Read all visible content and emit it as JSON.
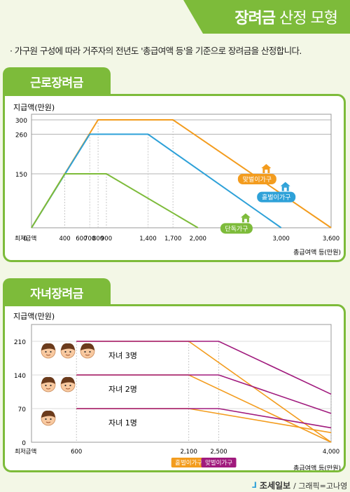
{
  "header": {
    "title_bold": "장려금",
    "title_rest": "산정 모형",
    "color": "#7dbb3a"
  },
  "intro": "· 가구원 구성에 따라 거주자의 전년도 '총급여액 등'을 기준으로 장려금을 산정합니다.",
  "footer": {
    "logo": "조세일보",
    "credit": "/ 그래픽=고나영"
  },
  "chart_data": [
    {
      "type": "line",
      "tab_title": "근로장려금",
      "ylabel": "지급액(만원)",
      "xlabel": "총급여액 등(만원)",
      "x_min_label": "최저금액",
      "x_ticks": [
        400,
        600,
        700,
        800,
        900,
        1400,
        1700,
        2000,
        3000,
        3600
      ],
      "x_tick_labels": [
        "400",
        "600",
        "700",
        "800",
        "900",
        "1,400",
        "1,700",
        "2,000",
        "3,000",
        "3,600"
      ],
      "y_ticks": [
        0,
        150,
        260,
        300
      ],
      "y_tick_labels": [
        "0",
        "150",
        "260",
        "300"
      ],
      "xlim": [
        0,
        3600
      ],
      "ylim": [
        0,
        300
      ],
      "series": [
        {
          "name": "맞벌이가구",
          "color": "#f39c1e",
          "x": [
            0,
            800,
            1700,
            3600
          ],
          "y": [
            0,
            300,
            300,
            0
          ]
        },
        {
          "name": "홑벌이가구",
          "color": "#2ea1d8",
          "x": [
            0,
            700,
            1400,
            3000
          ],
          "y": [
            0,
            260,
            260,
            0
          ]
        },
        {
          "name": "단독가구",
          "color": "#7dbb3a",
          "x": [
            0,
            400,
            900,
            2000
          ],
          "y": [
            0,
            150,
            150,
            0
          ]
        }
      ]
    },
    {
      "type": "line",
      "tab_title": "자녀장려금",
      "ylabel": "지급액(만원)",
      "xlabel": "총급여액 등(만원)",
      "x_min_label": "최저금액",
      "x_ticks": [
        600,
        2100,
        2500,
        4000
      ],
      "x_tick_labels": [
        "600",
        "2,100",
        "2,500",
        "4,000"
      ],
      "y_ticks": [
        0,
        70,
        140,
        210
      ],
      "y_tick_labels": [
        "0",
        "70",
        "140",
        "210"
      ],
      "xlim": [
        0,
        4000
      ],
      "ylim": [
        0,
        210
      ],
      "groups": [
        "자녀 3명",
        "자녀 2명",
        "자녀 1명"
      ],
      "legend": [
        {
          "name": "홑벌이가구",
          "color": "#f39c1e"
        },
        {
          "name": "맞벌이가구",
          "color": "#a01a7d"
        }
      ],
      "series": [
        {
          "name": "홑벌이가구",
          "group": "자녀 3명",
          "color": "#f39c1e",
          "x": [
            600,
            2100,
            4000
          ],
          "y": [
            210,
            210,
            0
          ]
        },
        {
          "name": "맞벌이가구",
          "group": "자녀 3명",
          "color": "#a01a7d",
          "x": [
            600,
            2500,
            4000
          ],
          "y": [
            210,
            210,
            100
          ]
        },
        {
          "name": "홑벌이가구",
          "group": "자녀 2명",
          "color": "#f39c1e",
          "x": [
            600,
            2100,
            4000
          ],
          "y": [
            140,
            140,
            0
          ]
        },
        {
          "name": "맞벌이가구",
          "group": "자녀 2명",
          "color": "#a01a7d",
          "x": [
            600,
            2500,
            4000
          ],
          "y": [
            140,
            140,
            60
          ]
        },
        {
          "name": "홑벌이가구",
          "group": "자녀 1명",
          "color": "#f39c1e",
          "x": [
            600,
            2100,
            4000
          ],
          "y": [
            70,
            70,
            20
          ]
        },
        {
          "name": "맞벌이가구",
          "group": "자녀 1명",
          "color": "#a01a7d",
          "x": [
            600,
            2500,
            4000
          ],
          "y": [
            70,
            70,
            30
          ]
        }
      ]
    }
  ]
}
